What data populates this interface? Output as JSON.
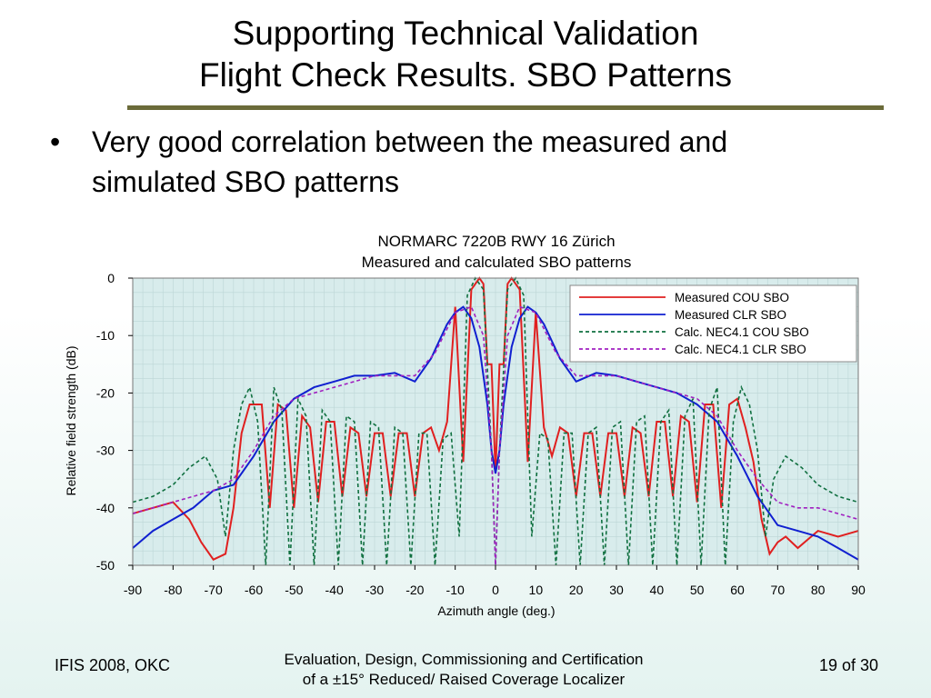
{
  "slide": {
    "title_line1": "Supporting Technical Validation",
    "title_line2": "Flight Check Results. SBO Patterns",
    "bullet_symbol": "•",
    "bullet_text": "Very good correlation between the measured and simulated SBO patterns",
    "footer_left": "IFIS 2008, OKC",
    "footer_mid_line1": "Evaluation, Design, Commissioning and Certification",
    "footer_mid_line2": "of a ±15°  Reduced/ Raised Coverage Localizer",
    "footer_right": "19 of 30",
    "rule_color": "#6b6b3a"
  },
  "chart_data": {
    "type": "line",
    "title": "NORMARC 7220B RWY 16 Zürich",
    "subtitle": "Measured and calculated SBO patterns",
    "xlabel": "Azimuth angle (deg.)",
    "ylabel": "Relative field strength (dB)",
    "xlim": [
      -90,
      90
    ],
    "ylim": [
      -50,
      0
    ],
    "xticks": [
      -90,
      -80,
      -70,
      -60,
      -50,
      -40,
      -30,
      -20,
      -10,
      0,
      10,
      20,
      30,
      40,
      50,
      60,
      70,
      80,
      90
    ],
    "yticks": [
      0,
      -10,
      -20,
      -30,
      -40,
      -50
    ],
    "grid": true,
    "legend_position": "top-right",
    "plot_background": "#d8ecec",
    "series": [
      {
        "name": "Measured COU SBO",
        "color": "#e02020",
        "dash": "solid",
        "x": [
          -90,
          -85,
          -80,
          -76,
          -73,
          -70,
          -67,
          -65,
          -63,
          -61,
          -58,
          -56,
          -54,
          -52,
          -50,
          -48,
          -46,
          -44,
          -42,
          -40,
          -38,
          -36,
          -34,
          -32,
          -30,
          -28,
          -26,
          -24,
          -22,
          -20,
          -18,
          -16,
          -14,
          -12,
          -10,
          -8,
          -6,
          -4,
          -3,
          -2,
          -1,
          0,
          1,
          2,
          3,
          4,
          6,
          8,
          10,
          12,
          14,
          16,
          18,
          20,
          22,
          24,
          26,
          28,
          30,
          32,
          34,
          36,
          38,
          40,
          42,
          44,
          46,
          48,
          50,
          52,
          54,
          56,
          58,
          60,
          62,
          64,
          66,
          68,
          70,
          72,
          75,
          80,
          85,
          90
        ],
        "y": [
          -41,
          -40,
          -39,
          -42,
          -46,
          -49,
          -48,
          -40,
          -27,
          -22,
          -22,
          -40,
          -22,
          -23,
          -40,
          -24,
          -26,
          -39,
          -25,
          -25,
          -38,
          -26,
          -27,
          -38,
          -27,
          -27,
          -38,
          -27,
          -27,
          -38,
          -27,
          -26,
          -30,
          -25,
          -5,
          -32,
          -2,
          0,
          -1,
          -15,
          -15,
          -34,
          -15,
          -15,
          -1,
          0,
          -2,
          -32,
          -6,
          -26,
          -31,
          -26,
          -27,
          -38,
          -27,
          -27,
          -38,
          -27,
          -27,
          -38,
          -26,
          -27,
          -38,
          -25,
          -25,
          -38,
          -24,
          -25,
          -39,
          -22,
          -22,
          -40,
          -22,
          -21,
          -26,
          -32,
          -42,
          -48,
          -46,
          -45,
          -47,
          -44,
          -45,
          -44
        ]
      },
      {
        "name": "Measured CLR SBO",
        "color": "#1020d0",
        "dash": "solid",
        "x": [
          -90,
          -85,
          -80,
          -75,
          -70,
          -65,
          -60,
          -55,
          -50,
          -45,
          -40,
          -35,
          -30,
          -25,
          -20,
          -16,
          -14,
          -12,
          -10,
          -8,
          -6,
          -4,
          -2,
          -1,
          0,
          1,
          2,
          4,
          6,
          8,
          10,
          12,
          14,
          16,
          20,
          25,
          30,
          35,
          40,
          45,
          50,
          55,
          60,
          65,
          70,
          75,
          80,
          85,
          90
        ],
        "y": [
          -47,
          -44,
          -42,
          -40,
          -37,
          -36,
          -31,
          -25,
          -21,
          -19,
          -18,
          -17,
          -17,
          -16.5,
          -18,
          -14,
          -11,
          -8,
          -6,
          -5,
          -7,
          -12,
          -22,
          -30,
          -34,
          -30,
          -22,
          -12,
          -7,
          -5,
          -6,
          -8,
          -11,
          -14,
          -18,
          -16.5,
          -17,
          -18,
          -19,
          -20,
          -22,
          -25,
          -31,
          -38,
          -43,
          -44,
          -45,
          -47,
          -49
        ]
      },
      {
        "name": "Calc. NEC4.1 COU SBO",
        "color": "#107040",
        "dash": "dashed",
        "x": [
          -90,
          -85,
          -80,
          -76,
          -72,
          -69,
          -67,
          -65,
          -63,
          -61,
          -59,
          -57,
          -55,
          -53,
          -51,
          -49,
          -47,
          -45,
          -43,
          -41,
          -39,
          -37,
          -35,
          -33,
          -31,
          -29,
          -27,
          -25,
          -23,
          -21,
          -19,
          -17,
          -15,
          -13,
          -11,
          -9,
          -7,
          -5,
          -3,
          -1,
          0,
          1,
          3,
          5,
          7,
          9,
          11,
          13,
          15,
          17,
          19,
          21,
          23,
          25,
          27,
          29,
          31,
          33,
          35,
          37,
          39,
          41,
          43,
          45,
          47,
          49,
          51,
          53,
          55,
          57,
          59,
          61,
          63,
          65,
          67,
          69,
          72,
          76,
          80,
          85,
          90
        ],
        "y": [
          -39,
          -38,
          -36,
          -33,
          -31,
          -35,
          -45,
          -30,
          -22,
          -19,
          -25,
          -50,
          -19,
          -23,
          -50,
          -21,
          -24,
          -50,
          -23,
          -25,
          -50,
          -24,
          -25,
          -50,
          -25,
          -26,
          -50,
          -26,
          -27,
          -50,
          -27,
          -27,
          -50,
          -28,
          -27,
          -45,
          -3,
          0,
          -2,
          -30,
          -50,
          -30,
          -2,
          0,
          -3,
          -45,
          -27,
          -28,
          -50,
          -27,
          -27,
          -50,
          -27,
          -26,
          -50,
          -26,
          -25,
          -50,
          -25,
          -24,
          -50,
          -25,
          -23,
          -50,
          -24,
          -21,
          -50,
          -23,
          -19,
          -50,
          -25,
          -19,
          -22,
          -30,
          -45,
          -35,
          -31,
          -33,
          -36,
          -38,
          -39
        ]
      },
      {
        "name": "Calc. NEC4.1 CLR SBO",
        "color": "#a020c0",
        "dash": "dashed",
        "x": [
          -90,
          -85,
          -80,
          -75,
          -70,
          -65,
          -60,
          -55,
          -50,
          -45,
          -40,
          -35,
          -30,
          -25,
          -20,
          -15,
          -10,
          -6,
          -3,
          -1,
          0,
          1,
          3,
          6,
          10,
          15,
          20,
          25,
          30,
          35,
          40,
          45,
          50,
          55,
          60,
          65,
          70,
          75,
          80,
          85,
          90
        ],
        "y": [
          -41,
          -40,
          -39,
          -38,
          -37,
          -35,
          -30,
          -24,
          -21,
          -20,
          -19,
          -18,
          -17,
          -17,
          -17,
          -13,
          -6,
          -5,
          -10,
          -30,
          -50,
          -30,
          -10,
          -5,
          -6,
          -13,
          -17,
          -17,
          -17,
          -18,
          -19,
          -20,
          -21,
          -24,
          -30,
          -35,
          -39,
          -40,
          -40,
          -41,
          -42
        ]
      }
    ]
  }
}
